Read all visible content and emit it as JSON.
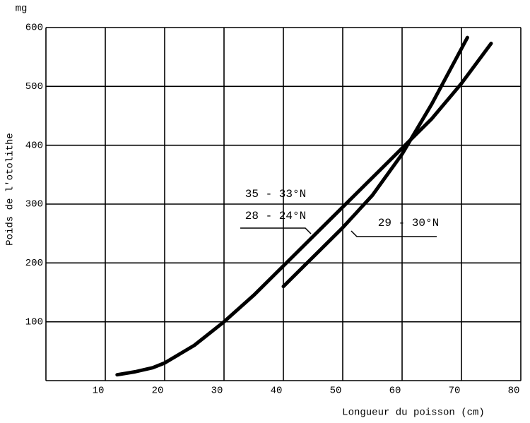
{
  "chart_data": {
    "type": "line",
    "xlabel": "Longueur du poisson (cm)",
    "ylabel": "Poids de l'otolithe",
    "yunit": "mg",
    "xlim": [
      0,
      80
    ],
    "xticks": [
      10,
      20,
      30,
      40,
      50,
      60,
      70,
      80
    ],
    "ylim": [
      0,
      600
    ],
    "yticks": [
      100,
      200,
      300,
      400,
      500,
      600
    ],
    "grid": true,
    "series": [
      {
        "color": "#000000",
        "x": [
          12,
          15,
          18,
          20,
          25,
          30,
          35,
          40,
          45,
          50,
          55,
          60,
          65,
          70,
          75
        ],
        "values": [
          10,
          15,
          22,
          30,
          60,
          100,
          145,
          195,
          245,
          295,
          345,
          395,
          445,
          505,
          573
        ]
      },
      {
        "color": "#000000",
        "x": [
          40,
          45,
          50,
          55,
          60,
          65,
          71
        ],
        "values": [
          160,
          210,
          260,
          315,
          385,
          470,
          583
        ]
      }
    ],
    "annotations": [
      "35 - 33°N",
      "28 - 24°N",
      "29 - 30°N"
    ]
  }
}
